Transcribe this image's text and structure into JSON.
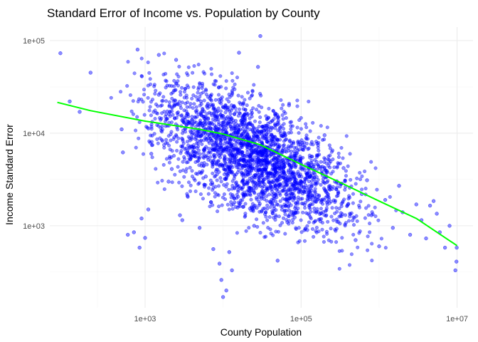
{
  "chart_data": {
    "type": "scatter",
    "title": "Standard Error of Income vs. Population by County",
    "xlabel": "County Population",
    "ylabel": "Income Standard Error",
    "x_scale": "log10",
    "y_scale": "log10",
    "xlim": [
      60,
      16000000
    ],
    "ylim": [
      130,
      140000
    ],
    "x_ticks": [
      {
        "value": 1000,
        "label": "1e+03"
      },
      {
        "value": 100000,
        "label": "1e+05"
      },
      {
        "value": 10000000,
        "label": "1e+07"
      }
    ],
    "y_ticks": [
      {
        "value": 1000,
        "label": "1e+03"
      },
      {
        "value": 10000,
        "label": "1e+04"
      },
      {
        "value": 100000,
        "label": "1e+05"
      }
    ],
    "grid": true,
    "point_color": "#0000ff",
    "point_opacity": 0.45,
    "trend_color": "#00ff00",
    "points": [
      {
        "x": 82,
        "y": 73000
      },
      {
        "x": 108,
        "y": 22000
      },
      {
        "x": 145,
        "y": 17000
      },
      {
        "x": 200,
        "y": 45000
      },
      {
        "x": 500,
        "y": 11000
      },
      {
        "x": 520,
        "y": 6200
      },
      {
        "x": 600,
        "y": 800
      },
      {
        "x": 720,
        "y": 850
      },
      {
        "x": 800,
        "y": 80000
      },
      {
        "x": 850,
        "y": 580
      },
      {
        "x": 900,
        "y": 1200
      },
      {
        "x": 1000,
        "y": 740
      },
      {
        "x": 1100,
        "y": 1500
      },
      {
        "x": 1200,
        "y": 6000
      },
      {
        "x": 1500,
        "y": 70000
      },
      {
        "x": 1500,
        "y": 26000
      },
      {
        "x": 2000,
        "y": 3000
      },
      {
        "x": 2200,
        "y": 4100
      },
      {
        "x": 2500,
        "y": 62000
      },
      {
        "x": 2800,
        "y": 1300
      },
      {
        "x": 3000,
        "y": 1150
      },
      {
        "x": 3500,
        "y": 2100
      },
      {
        "x": 3800,
        "y": 5200
      },
      {
        "x": 4000,
        "y": 12000
      },
      {
        "x": 4500,
        "y": 9000
      },
      {
        "x": 5000,
        "y": 950
      },
      {
        "x": 5200,
        "y": 22000
      },
      {
        "x": 6000,
        "y": 3400
      },
      {
        "x": 7000,
        "y": 1800
      },
      {
        "x": 7500,
        "y": 560
      },
      {
        "x": 8000,
        "y": 15000
      },
      {
        "x": 8500,
        "y": 7000
      },
      {
        "x": 9000,
        "y": 390
      },
      {
        "x": 9500,
        "y": 260
      },
      {
        "x": 10000,
        "y": 170
      },
      {
        "x": 10500,
        "y": 3200
      },
      {
        "x": 11000,
        "y": 9800
      },
      {
        "x": 11000,
        "y": 200
      },
      {
        "x": 12000,
        "y": 520
      },
      {
        "x": 13000,
        "y": 330
      },
      {
        "x": 15000,
        "y": 4300
      },
      {
        "x": 16000,
        "y": 74000
      },
      {
        "x": 18000,
        "y": 1600
      },
      {
        "x": 20000,
        "y": 12500
      },
      {
        "x": 22000,
        "y": 5600
      },
      {
        "x": 25000,
        "y": 1000
      },
      {
        "x": 28000,
        "y": 52000
      },
      {
        "x": 30000,
        "y": 112000
      },
      {
        "x": 35000,
        "y": 2400
      },
      {
        "x": 40000,
        "y": 7200
      },
      {
        "x": 45000,
        "y": 3100
      },
      {
        "x": 50000,
        "y": 420
      },
      {
        "x": 60000,
        "y": 4800
      },
      {
        "x": 70000,
        "y": 20000
      },
      {
        "x": 80000,
        "y": 1400
      },
      {
        "x": 90000,
        "y": 6500
      },
      {
        "x": 100000,
        "y": 2900
      },
      {
        "x": 120000,
        "y": 900
      },
      {
        "x": 150000,
        "y": 3600
      },
      {
        "x": 180000,
        "y": 1800
      },
      {
        "x": 200000,
        "y": 9500
      },
      {
        "x": 250000,
        "y": 2500
      },
      {
        "x": 300000,
        "y": 1100
      },
      {
        "x": 350000,
        "y": 4200
      },
      {
        "x": 400000,
        "y": 1700
      },
      {
        "x": 500000,
        "y": 700
      },
      {
        "x": 600000,
        "y": 2200
      },
      {
        "x": 700000,
        "y": 3100
      },
      {
        "x": 800000,
        "y": 1300
      },
      {
        "x": 1000000,
        "y": 600
      },
      {
        "x": 1200000,
        "y": 1900
      },
      {
        "x": 1500000,
        "y": 950
      },
      {
        "x": 1800000,
        "y": 2700
      },
      {
        "x": 2000000,
        "y": 1400
      },
      {
        "x": 2500000,
        "y": 800
      },
      {
        "x": 3000000,
        "y": 1700
      },
      {
        "x": 3500000,
        "y": 1150
      },
      {
        "x": 4000000,
        "y": 730
      },
      {
        "x": 4500000,
        "y": 1650
      },
      {
        "x": 5000000,
        "y": 1850
      },
      {
        "x": 5500000,
        "y": 1350
      },
      {
        "x": 6000000,
        "y": 850
      },
      {
        "x": 7000000,
        "y": 580
      },
      {
        "x": 8000000,
        "y": 1000
      },
      {
        "x": 9500000,
        "y": 330
      },
      {
        "x": 9800000,
        "y": 410
      },
      {
        "x": 9900000,
        "y": 580
      }
    ],
    "trend": [
      {
        "x": 75,
        "y": 21500
      },
      {
        "x": 200,
        "y": 17500
      },
      {
        "x": 1000,
        "y": 13500
      },
      {
        "x": 5000,
        "y": 11000
      },
      {
        "x": 10000,
        "y": 9800
      },
      {
        "x": 30000,
        "y": 7500
      },
      {
        "x": 100000,
        "y": 4600
      },
      {
        "x": 300000,
        "y": 3000
      },
      {
        "x": 1000000,
        "y": 1850
      },
      {
        "x": 3000000,
        "y": 1200
      },
      {
        "x": 10000000,
        "y": 610
      }
    ]
  }
}
